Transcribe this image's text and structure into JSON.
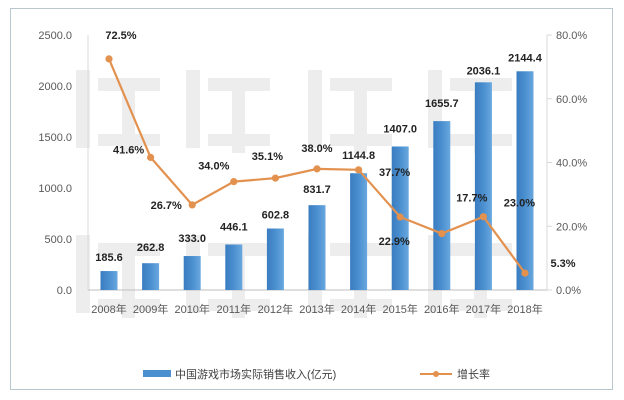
{
  "chart_data": {
    "type": "bar+line",
    "categories": [
      "2008年",
      "2009年",
      "2010年",
      "2011年",
      "2012年",
      "2013年",
      "2014年",
      "2015年",
      "2016年",
      "2017年",
      "2018年"
    ],
    "series": [
      {
        "name": "中国游戏市场实际销售收入(亿元)",
        "type": "bar",
        "axis": "left",
        "color": "#4a8fd0",
        "values": [
          185.6,
          262.8,
          333.0,
          446.1,
          602.8,
          831.7,
          1144.8,
          1407.0,
          1655.7,
          2036.1,
          2144.4
        ],
        "labels": [
          "185.6",
          "262.8",
          "333.0",
          "446.1",
          "602.8",
          "831.7",
          "1144.8",
          "1407.0",
          "1655.7",
          "2036.1",
          "2144.4"
        ]
      },
      {
        "name": "增长率",
        "type": "line",
        "axis": "right",
        "color": "#e3914f",
        "values": [
          72.5,
          41.6,
          26.7,
          34.0,
          35.1,
          38.0,
          37.7,
          22.9,
          17.7,
          23.0,
          5.3
        ],
        "labels": [
          "72.5%",
          "41.6%",
          "26.7%",
          "34.0%",
          "35.1%",
          "38.0%",
          "37.7%",
          "22.9%",
          "17.7%",
          "23.0%",
          "5.3%"
        ]
      }
    ],
    "left_axis": {
      "ylim": [
        0,
        2500
      ],
      "ticks": [
        "0.0",
        "500.0",
        "1000.0",
        "1500.0",
        "2000.0",
        "2500.0"
      ]
    },
    "right_axis": {
      "ylim": [
        0,
        80
      ],
      "ticks": [
        "0.0%",
        "20.0%",
        "40.0%",
        "60.0%",
        "80.0%"
      ]
    },
    "grid": false,
    "legend_placement": "bottom",
    "watermark": [
      "游戏工委",
      "伽马数据"
    ]
  }
}
